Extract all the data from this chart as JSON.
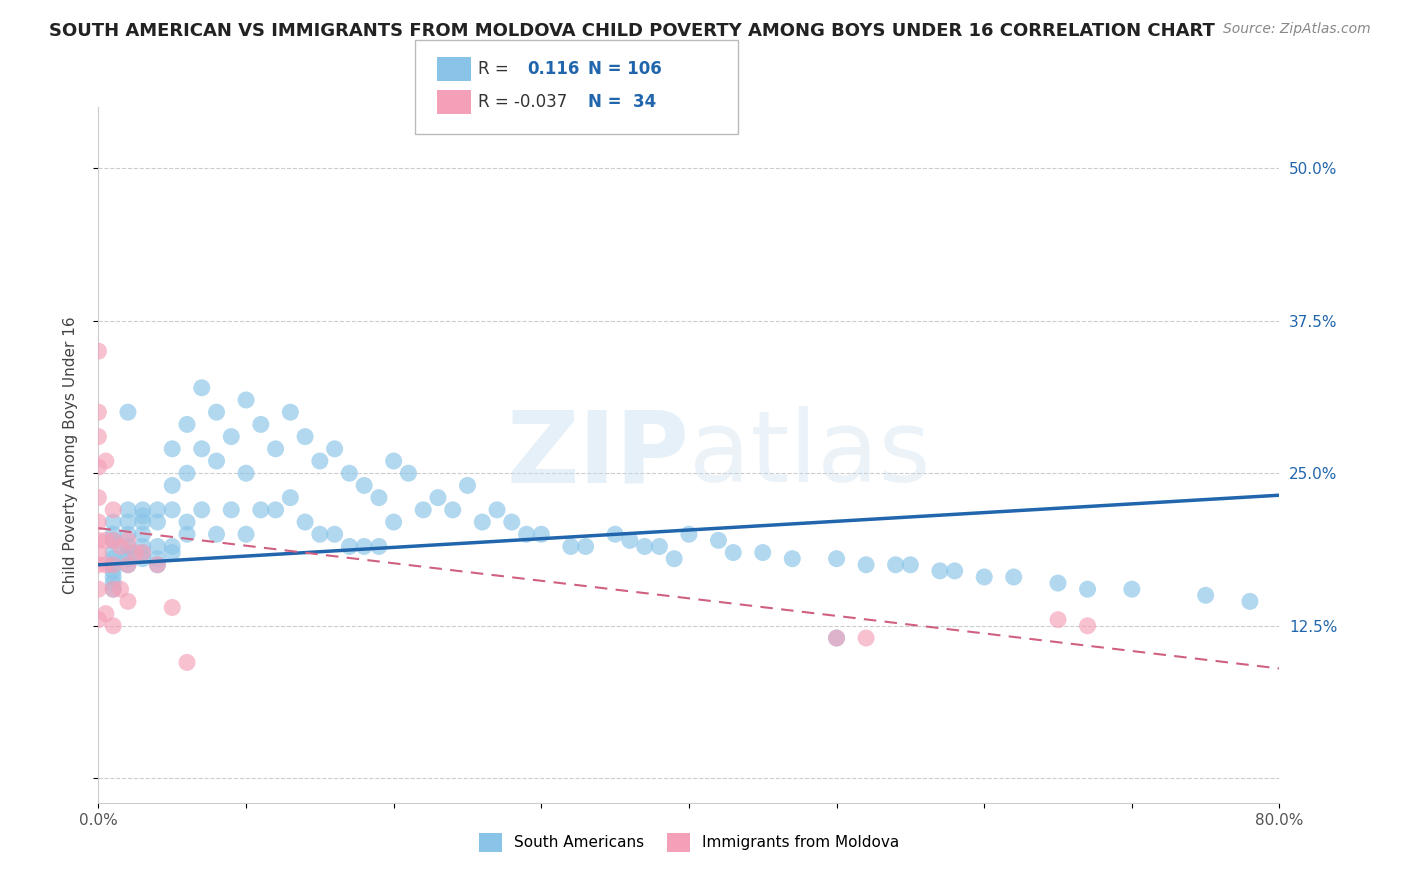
{
  "title": "SOUTH AMERICAN VS IMMIGRANTS FROM MOLDOVA CHILD POVERTY AMONG BOYS UNDER 16 CORRELATION CHART",
  "source": "Source: ZipAtlas.com",
  "ylabel": "Child Poverty Among Boys Under 16",
  "xlim": [
    0,
    0.8
  ],
  "ylim": [
    -0.02,
    0.55
  ],
  "ytick_positions": [
    0.0,
    0.125,
    0.25,
    0.375,
    0.5
  ],
  "ytick_labels": [
    "",
    "12.5%",
    "25.0%",
    "37.5%",
    "50.0%"
  ],
  "watermark": "ZIPatlas",
  "blue_color": "#89c4e8",
  "pink_color": "#f4a0b8",
  "blue_line_color": "#2166ac",
  "pink_line_color": "#d06080",
  "blue_R": 0.116,
  "pink_R": -0.037,
  "blue_N": 106,
  "pink_N": 34,
  "blue_x": [
    0.01,
    0.01,
    0.01,
    0.01,
    0.01,
    0.01,
    0.01,
    0.01,
    0.01,
    0.01,
    0.02,
    0.02,
    0.02,
    0.02,
    0.02,
    0.02,
    0.02,
    0.02,
    0.03,
    0.03,
    0.03,
    0.03,
    0.03,
    0.03,
    0.03,
    0.04,
    0.04,
    0.04,
    0.04,
    0.04,
    0.05,
    0.05,
    0.05,
    0.05,
    0.05,
    0.06,
    0.06,
    0.06,
    0.06,
    0.07,
    0.07,
    0.07,
    0.08,
    0.08,
    0.08,
    0.09,
    0.09,
    0.1,
    0.1,
    0.1,
    0.11,
    0.11,
    0.12,
    0.12,
    0.13,
    0.13,
    0.14,
    0.14,
    0.15,
    0.15,
    0.16,
    0.16,
    0.17,
    0.17,
    0.18,
    0.18,
    0.19,
    0.19,
    0.2,
    0.2,
    0.21,
    0.22,
    0.23,
    0.24,
    0.25,
    0.26,
    0.27,
    0.28,
    0.29,
    0.3,
    0.32,
    0.33,
    0.35,
    0.36,
    0.37,
    0.38,
    0.39,
    0.4,
    0.42,
    0.43,
    0.45,
    0.47,
    0.5,
    0.52,
    0.54,
    0.55,
    0.57,
    0.58,
    0.6,
    0.62,
    0.65,
    0.67,
    0.7,
    0.75,
    0.78,
    0.5
  ],
  "blue_y": [
    0.195,
    0.2,
    0.21,
    0.185,
    0.175,
    0.17,
    0.165,
    0.16,
    0.155,
    0.18,
    0.19,
    0.185,
    0.175,
    0.21,
    0.2,
    0.22,
    0.3,
    0.18,
    0.215,
    0.2,
    0.185,
    0.19,
    0.22,
    0.21,
    0.18,
    0.21,
    0.19,
    0.175,
    0.18,
    0.22,
    0.27,
    0.24,
    0.22,
    0.19,
    0.185,
    0.29,
    0.25,
    0.21,
    0.2,
    0.32,
    0.27,
    0.22,
    0.3,
    0.26,
    0.2,
    0.28,
    0.22,
    0.31,
    0.25,
    0.2,
    0.29,
    0.22,
    0.27,
    0.22,
    0.3,
    0.23,
    0.28,
    0.21,
    0.26,
    0.2,
    0.27,
    0.2,
    0.25,
    0.19,
    0.24,
    0.19,
    0.23,
    0.19,
    0.26,
    0.21,
    0.25,
    0.22,
    0.23,
    0.22,
    0.24,
    0.21,
    0.22,
    0.21,
    0.2,
    0.2,
    0.19,
    0.19,
    0.2,
    0.195,
    0.19,
    0.19,
    0.18,
    0.2,
    0.195,
    0.185,
    0.185,
    0.18,
    0.18,
    0.175,
    0.175,
    0.175,
    0.17,
    0.17,
    0.165,
    0.165,
    0.16,
    0.155,
    0.155,
    0.15,
    0.145,
    0.115
  ],
  "pink_x": [
    0.0,
    0.0,
    0.0,
    0.0,
    0.0,
    0.0,
    0.0,
    0.0,
    0.0,
    0.0,
    0.0,
    0.005,
    0.005,
    0.005,
    0.005,
    0.01,
    0.01,
    0.01,
    0.01,
    0.01,
    0.015,
    0.015,
    0.02,
    0.02,
    0.02,
    0.025,
    0.03,
    0.04,
    0.05,
    0.06,
    0.5,
    0.52,
    0.65,
    0.67
  ],
  "pink_y": [
    0.35,
    0.3,
    0.28,
    0.255,
    0.23,
    0.21,
    0.195,
    0.185,
    0.175,
    0.155,
    0.13,
    0.26,
    0.195,
    0.175,
    0.135,
    0.22,
    0.195,
    0.175,
    0.155,
    0.125,
    0.19,
    0.155,
    0.195,
    0.175,
    0.145,
    0.185,
    0.185,
    0.175,
    0.14,
    0.095,
    0.115,
    0.115,
    0.13,
    0.125
  ]
}
